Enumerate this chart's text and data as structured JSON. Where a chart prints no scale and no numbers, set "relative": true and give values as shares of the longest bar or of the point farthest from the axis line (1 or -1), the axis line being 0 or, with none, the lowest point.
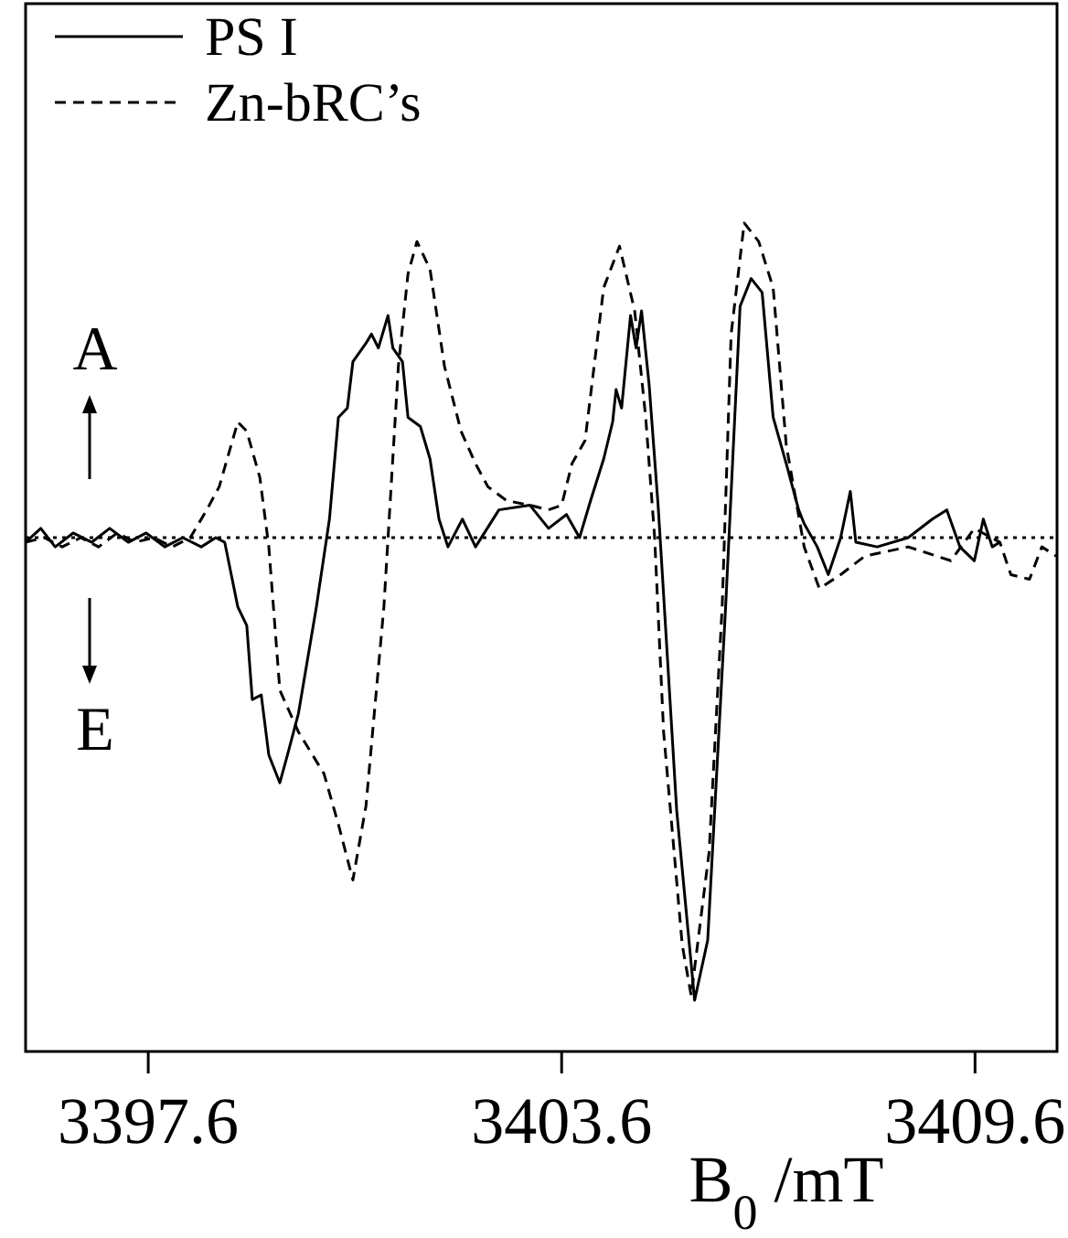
{
  "chart_data": {
    "type": "line",
    "relative": true,
    "xlabel": "B$_{0}$ /mT",
    "xlim": [
      3395.82,
      3410.79
    ],
    "xticks": [
      3397.6,
      3403.6,
      3409.6
    ],
    "tick_labels": "x",
    "grid": false,
    "legend": "top left",
    "annotations": [
      "A",
      "E"
    ],
    "ref_lines": [
      {
        "axis": "y",
        "value": 0,
        "line_style": "dotted",
        "color": "#000000"
      }
    ],
    "series": [
      {
        "name": "PS I",
        "color": "#000000",
        "line_style": "solid",
        "x": [
          3395.82,
          3396.04,
          3396.25,
          3396.51,
          3396.78,
          3397.04,
          3397.31,
          3397.57,
          3397.84,
          3398.1,
          3398.37,
          3398.58,
          3398.71,
          3398.9,
          3399.03,
          3399.11,
          3399.24,
          3399.35,
          3399.51,
          3399.62,
          3399.78,
          3400.04,
          3400.23,
          3400.36,
          3400.49,
          3400.57,
          3400.76,
          3400.84,
          3400.94,
          3401.08,
          3401.15,
          3401.29,
          3401.37,
          3401.55,
          3401.69,
          3401.82,
          3401.95,
          3402.16,
          3402.35,
          3402.69,
          3403.14,
          3403.41,
          3403.67,
          3403.86,
          3404.02,
          3404.21,
          3404.34,
          3404.39,
          3404.47,
          3404.6,
          3404.68,
          3404.76,
          3404.87,
          3405.0,
          3405.05,
          3405.27,
          3405.53,
          3405.72,
          3405.98,
          3406.19,
          3406.35,
          3406.51,
          3406.67,
          3406.86,
          3407.04,
          3407.12,
          3407.31,
          3407.47,
          3407.65,
          3407.79,
          3407.87,
          3408.18,
          3408.63,
          3408.98,
          3409.19,
          3409.38,
          3409.59,
          3409.72,
          3409.85,
          3409.96
        ],
        "values": [
          -0.01,
          0.02,
          -0.02,
          0.01,
          -0.01,
          0.02,
          -0.01,
          0.01,
          -0.02,
          0.0,
          -0.02,
          0.0,
          -0.01,
          -0.15,
          -0.19,
          -0.35,
          -0.34,
          -0.47,
          -0.53,
          -0.47,
          -0.38,
          -0.15,
          0.04,
          0.26,
          0.28,
          0.38,
          0.42,
          0.44,
          0.41,
          0.48,
          0.41,
          0.38,
          0.26,
          0.24,
          0.17,
          0.04,
          -0.02,
          0.04,
          -0.02,
          0.06,
          0.07,
          0.02,
          0.05,
          0.0,
          0.08,
          0.17,
          0.25,
          0.32,
          0.28,
          0.48,
          0.41,
          0.49,
          0.33,
          0.07,
          -0.05,
          -0.59,
          -1.0,
          -0.87,
          -0.15,
          0.5,
          0.56,
          0.53,
          0.26,
          0.16,
          0.06,
          0.03,
          -0.02,
          -0.08,
          0.0,
          0.1,
          -0.01,
          -0.02,
          0.0,
          0.04,
          0.06,
          -0.02,
          -0.05,
          0.04,
          -0.02,
          -0.01
        ]
      },
      {
        "name": "Zn-bRC’s",
        "color": "#000000",
        "line_style": "dashed",
        "x": [
          3395.82,
          3396.09,
          3396.35,
          3396.62,
          3396.88,
          3397.15,
          3397.41,
          3397.68,
          3397.95,
          3398.21,
          3398.45,
          3398.63,
          3398.9,
          3399.03,
          3399.22,
          3399.35,
          3399.51,
          3399.78,
          3400.15,
          3400.36,
          3400.57,
          3400.76,
          3401.02,
          3401.23,
          3401.37,
          3401.5,
          3401.69,
          3401.9,
          3402.14,
          3402.35,
          3402.53,
          3402.8,
          3403.14,
          3403.41,
          3403.6,
          3403.75,
          3403.94,
          3404.21,
          3404.44,
          3404.66,
          3404.82,
          3404.95,
          3405.08,
          3405.35,
          3405.48,
          3405.74,
          3405.93,
          3406.06,
          3406.25,
          3406.46,
          3406.67,
          3406.86,
          3407.12,
          3407.34,
          3407.65,
          3408.0,
          3408.63,
          3409.25,
          3409.59,
          3409.96,
          3410.12,
          3410.39,
          3410.57,
          3410.78
        ],
        "values": [
          -0.01,
          0.0,
          -0.02,
          0.0,
          -0.02,
          0.01,
          -0.01,
          0.0,
          -0.02,
          0.0,
          0.06,
          0.11,
          0.25,
          0.23,
          0.13,
          -0.02,
          -0.33,
          -0.42,
          -0.51,
          -0.62,
          -0.74,
          -0.58,
          -0.15,
          0.37,
          0.57,
          0.64,
          0.58,
          0.37,
          0.23,
          0.16,
          0.11,
          0.08,
          0.07,
          0.06,
          0.07,
          0.16,
          0.21,
          0.54,
          0.63,
          0.49,
          0.26,
          0.0,
          -0.42,
          -0.88,
          -0.99,
          -0.68,
          -0.15,
          0.44,
          0.68,
          0.64,
          0.54,
          0.2,
          -0.02,
          -0.11,
          -0.08,
          -0.04,
          -0.02,
          -0.05,
          0.02,
          -0.01,
          -0.08,
          -0.09,
          -0.02,
          -0.04
        ]
      }
    ]
  }
}
